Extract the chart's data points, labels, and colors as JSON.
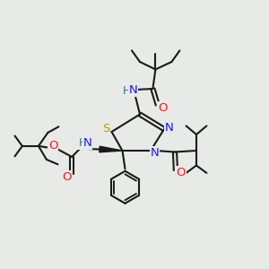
{
  "bg_color": "#e8eae8",
  "atom_colors": {
    "N": "#1515ff",
    "O": "#ff1515",
    "S": "#b8a000",
    "H": "#2a7a7a",
    "C": "#1a1a1a"
  },
  "lw": 1.5
}
